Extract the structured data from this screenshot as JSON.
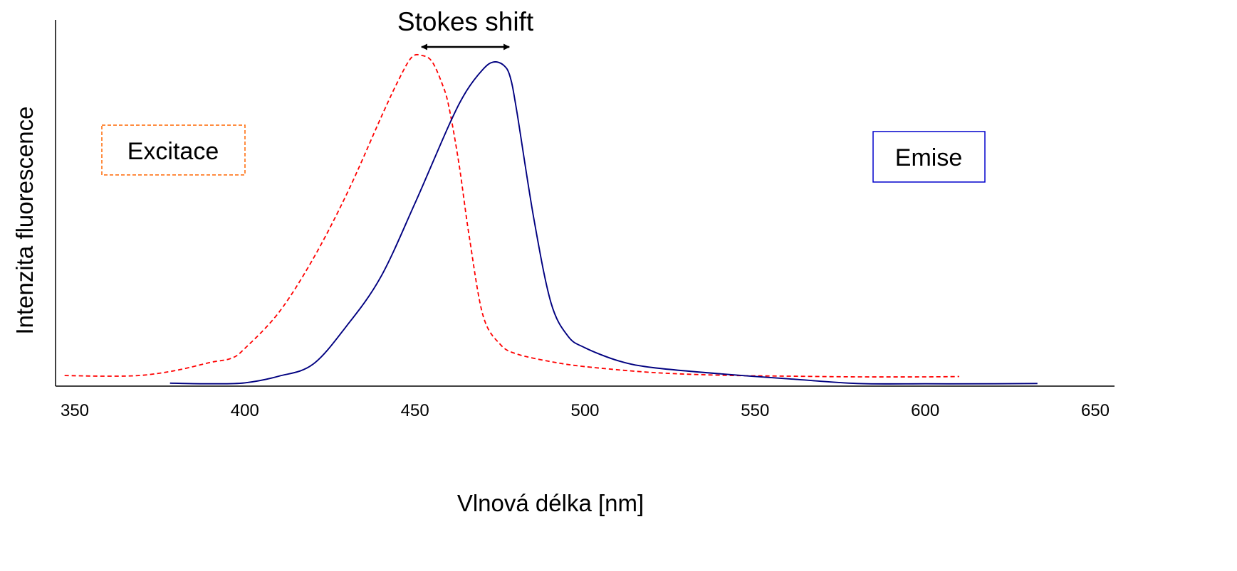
{
  "chart_data": {
    "type": "line",
    "title": "",
    "xlabel": "Vlnová délka [nm]",
    "ylabel": "Intenzita fluorescence",
    "xlim": [
      350,
      650
    ],
    "ylim": [
      0,
      100
    ],
    "xticks": [
      350,
      400,
      450,
      500,
      550,
      600,
      650
    ],
    "grid": false,
    "legend": "none",
    "series": [
      {
        "name": "Excitace",
        "color": "#ff0000",
        "dash": "dashed",
        "x": [
          347,
          360,
          370,
          380,
          390,
          396,
          400,
          410,
          420,
          430,
          440,
          445,
          449,
          452,
          455,
          458,
          460,
          463,
          466,
          470,
          475,
          480,
          490,
          500,
          520,
          540,
          560,
          580,
          600,
          610
        ],
        "y": [
          3.2,
          3.0,
          3.3,
          4.8,
          7.2,
          8.4,
          11.4,
          22.3,
          38.4,
          58.2,
          81.2,
          92.2,
          99.4,
          100,
          98.2,
          91.4,
          84.4,
          66.8,
          45.0,
          21.4,
          12.7,
          9.7,
          7.4,
          5.9,
          4.1,
          3.3,
          3.0,
          2.8,
          2.8,
          2.9
        ]
      },
      {
        "name": "Emise",
        "color": "#000080",
        "dash": "solid",
        "x": [
          378,
          390,
          400,
          410,
          420,
          430,
          440,
          450,
          460,
          465,
          470,
          473,
          476,
          478,
          480,
          485,
          490,
          495,
          500,
          510,
          520,
          540,
          560,
          580,
          600,
          620,
          633
        ],
        "y": [
          0.9,
          0.7,
          1.0,
          3.0,
          6.6,
          18.3,
          33.1,
          55.3,
          78.9,
          89.0,
          95.8,
          98.0,
          97.1,
          93.5,
          82.7,
          50.3,
          25.2,
          15.1,
          11.6,
          7.6,
          5.6,
          3.7,
          2.2,
          0.8,
          0.7,
          0.7,
          0.8
        ]
      }
    ],
    "annotations": [
      {
        "label": "Excitace",
        "series": 0,
        "box_style": "dashed",
        "box_color": "#ff6600"
      },
      {
        "label": "Emise",
        "series": 1,
        "box_style": "solid",
        "box_color": "#0000cc"
      },
      {
        "label": "Stokes shift",
        "from_x": 449,
        "to_x": 479,
        "arrow": "double"
      }
    ]
  }
}
